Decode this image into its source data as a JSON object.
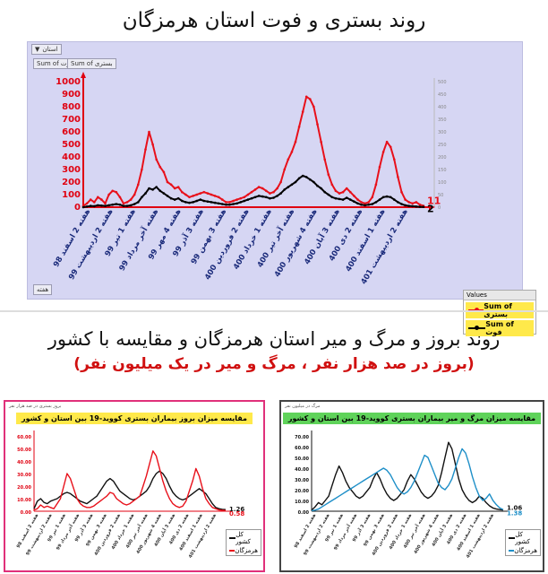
{
  "titles": {
    "main": "روند بستری و فوت استان هرمزگان",
    "second": "روند بروز و مرگ و میر استان هرمزگان و مقایسه با کشور",
    "second_sub": "(بروز در صد هزار نفر ، مرگ و میر در یک میلیون نفر)"
  },
  "top_panel": {
    "filter_label": "استان",
    "filter_icon": "funnel-icon",
    "field_chip_1": "Sum of فوت",
    "field_chip_2": "Sum of بستری",
    "week_chip": "هفته",
    "legend_header": "Values"
  },
  "small_left": {
    "corner_label": "بروز بستری در صد هزار نفر",
    "title": "مقایسه میزان بروز بیماران بستری کووید-19 بین استان و کشور",
    "legend": [
      "کل کشور",
      "هرمزگان"
    ],
    "colors": {
      "country": "#111111",
      "province": "#e0101a"
    }
  },
  "small_right": {
    "corner_label": "مرگ در میلیون نفر",
    "title": "مقایسه میزان مرگ و میر بیماران بستری کووید-19 بین استان و کشور",
    "legend": [
      "کل کشور",
      "هرمزگان"
    ],
    "colors": {
      "country": "#111111",
      "province": "#1e8fc8"
    }
  },
  "chart_data": [
    {
      "type": "line",
      "title": "روند بستری و فوت استان هرمزگان",
      "ylim": [
        0,
        1000
      ],
      "y_ticks": [
        0,
        100,
        200,
        300,
        400,
        500,
        600,
        700,
        800,
        900,
        1000
      ],
      "y2_ticks": [
        0,
        50,
        100,
        150,
        200,
        250,
        300,
        350,
        400,
        450,
        500
      ],
      "x_tick_labels": [
        "98 هفته 2 اسفند",
        "99 هفته 2 اردیبهشت",
        "99 هفته 1 تیر",
        "99 هفته آخر مرداد",
        "99 هفته 4 مهر",
        "99 هفته 3 آذر",
        "99 هفته 3 بهمن",
        "400 هفته 2 فروردین",
        "400 هفته 1 خرداد",
        "400 هفته آخر تیر",
        "400 هفته 4 شهریور",
        "400 هفته 3 آبان",
        "400 هفته 2 دی",
        "400 هفته 1 اسفند",
        "401 هفته 2 اردیبهشت"
      ],
      "series": [
        {
          "name": "Sum of بستری",
          "color": "#e8101a",
          "last_label": "11",
          "values": [
            10,
            30,
            60,
            40,
            80,
            60,
            30,
            100,
            130,
            120,
            80,
            30,
            40,
            60,
            100,
            180,
            300,
            460,
            600,
            500,
            380,
            320,
            280,
            200,
            180,
            150,
            160,
            120,
            100,
            80,
            90,
            100,
            110,
            120,
            110,
            100,
            90,
            80,
            60,
            40,
            40,
            50,
            60,
            70,
            80,
            100,
            120,
            140,
            160,
            150,
            130,
            110,
            120,
            150,
            200,
            300,
            380,
            440,
            520,
            640,
            760,
            880,
            860,
            800,
            660,
            520,
            380,
            260,
            180,
            130,
            110,
            120,
            150,
            120,
            90,
            60,
            40,
            30,
            40,
            80,
            180,
            320,
            440,
            520,
            480,
            380,
            240,
            120,
            60,
            40,
            30,
            40,
            20,
            11
          ]
        },
        {
          "name": "Sum of فوت",
          "color": "#000000",
          "last_label": "2",
          "values": [
            0,
            5,
            10,
            8,
            15,
            12,
            10,
            15,
            20,
            25,
            20,
            10,
            10,
            15,
            25,
            40,
            80,
            110,
            150,
            140,
            160,
            130,
            110,
            90,
            70,
            60,
            70,
            50,
            40,
            35,
            40,
            50,
            60,
            50,
            45,
            40,
            35,
            30,
            25,
            20,
            20,
            25,
            30,
            40,
            50,
            60,
            70,
            80,
            90,
            85,
            80,
            70,
            75,
            90,
            110,
            140,
            160,
            180,
            200,
            230,
            250,
            240,
            220,
            200,
            170,
            150,
            120,
            100,
            80,
            70,
            65,
            60,
            75,
            60,
            45,
            30,
            20,
            15,
            20,
            25,
            40,
            60,
            80,
            85,
            80,
            60,
            40,
            25,
            15,
            10,
            8,
            5,
            3,
            2
          ]
        }
      ]
    },
    {
      "type": "line",
      "title": "مقایسه میزان بروز بیماران بستری کووید-19 بین استان و کشور",
      "ylim": [
        0,
        60
      ],
      "y_ticks": [
        "0.00",
        "10.00",
        "20.00",
        "30.00",
        "40.00",
        "50.00",
        "60.00"
      ],
      "x_tick_labels": [
        "98 هفته 2 اسفند",
        "99 هفته 2 اردیبهشت",
        "99 هفته 1 تیر",
        "99 هفته آخر مرداد",
        "99 هفته 3 آذر",
        "99 هفته 3 بهمن",
        "400 هفته 2 فروردین",
        "400 هفته 1 خرداد",
        "400 هفته آخر تیر",
        "400 هفته 4 شهریور",
        "400 هفته 3 آبان",
        "400 هفته 2 دی",
        "400 هفته 1 اسفند",
        "401 هفته 2 اردیبهشت"
      ],
      "series": [
        {
          "name": "کل کشور",
          "color": "#111111",
          "last_label": "1.26",
          "values": [
            2,
            8,
            10,
            7,
            6,
            8,
            9,
            10,
            12,
            14,
            15,
            14,
            12,
            10,
            8,
            7,
            6,
            8,
            10,
            12,
            16,
            20,
            24,
            26,
            24,
            20,
            16,
            14,
            12,
            10,
            9,
            10,
            12,
            14,
            16,
            20,
            26,
            30,
            32,
            30,
            26,
            20,
            15,
            12,
            10,
            9,
            10,
            12,
            14,
            16,
            18,
            16,
            14,
            10,
            6,
            3,
            2,
            1.5,
            1.26
          ]
        },
        {
          "name": "هرمزگان",
          "color": "#e8101a",
          "last_label": "0.58",
          "values": [
            1,
            2,
            5,
            3,
            4,
            3,
            2,
            6,
            10,
            20,
            30,
            26,
            18,
            10,
            6,
            4,
            3,
            3,
            4,
            6,
            8,
            10,
            12,
            15,
            14,
            10,
            8,
            6,
            5,
            6,
            8,
            10,
            12,
            20,
            28,
            38,
            48,
            44,
            34,
            24,
            16,
            10,
            6,
            4,
            3,
            4,
            8,
            16,
            24,
            34,
            28,
            18,
            10,
            6,
            3,
            2,
            1,
            0.8,
            0.58
          ]
        }
      ]
    },
    {
      "type": "line",
      "title": "مقایسه میزان مرگ و میر بیماران بستری کووید-19 بین استان و کشور",
      "ylim": [
        0,
        70
      ],
      "y_ticks": [
        "0.00",
        "10.00",
        "20.00",
        "30.00",
        "40.00",
        "50.00",
        "60.00",
        "70.00"
      ],
      "x_tick_labels": [
        "98 هفته 2 اسفند",
        "99 هفته 2 اردیبهشت",
        "99 هفته 1 تیر",
        "99 هفته آخر مرداد",
        "99 هفته 3 آذر",
        "99 هفته 3 بهمن",
        "400 هفته 2 فروردین",
        "400 هفته 1 خرداد",
        "400 هفته آخر تیر",
        "400 هفته 4 شهریور",
        "400 هفته 3 آبان",
        "400 هفته 2 دی",
        "400 هفته 1 اسفند",
        "401 هفته 2 اردیبهشت"
      ],
      "series": [
        {
          "name": "کل کشور",
          "color": "#111111",
          "last_label": "1.06",
          "values": [
            1,
            4,
            8,
            6,
            10,
            14,
            24,
            34,
            42,
            36,
            28,
            22,
            18,
            14,
            12,
            14,
            18,
            22,
            30,
            36,
            30,
            22,
            16,
            12,
            10,
            12,
            16,
            20,
            28,
            34,
            30,
            24,
            18,
            14,
            12,
            14,
            18,
            24,
            36,
            50,
            64,
            58,
            44,
            30,
            20,
            14,
            10,
            8,
            10,
            14,
            12,
            8,
            5,
            3,
            2,
            1.5,
            1.06
          ]
        },
        {
          "name": "هرمزگان",
          "color": "#1e8fc8",
          "last_label": "1.38",
          "values": [
            0.5,
            1,
            2,
            4,
            6,
            8,
            10,
            12,
            14,
            16,
            18,
            20,
            22,
            24,
            26,
            28,
            30,
            32,
            34,
            36,
            38,
            40,
            38,
            34,
            28,
            22,
            18,
            16,
            18,
            22,
            28,
            36,
            44,
            52,
            50,
            42,
            34,
            26,
            22,
            20,
            24,
            30,
            40,
            50,
            58,
            54,
            44,
            32,
            22,
            14,
            10,
            12,
            16,
            10,
            6,
            3,
            1.38
          ]
        }
      ]
    }
  ]
}
